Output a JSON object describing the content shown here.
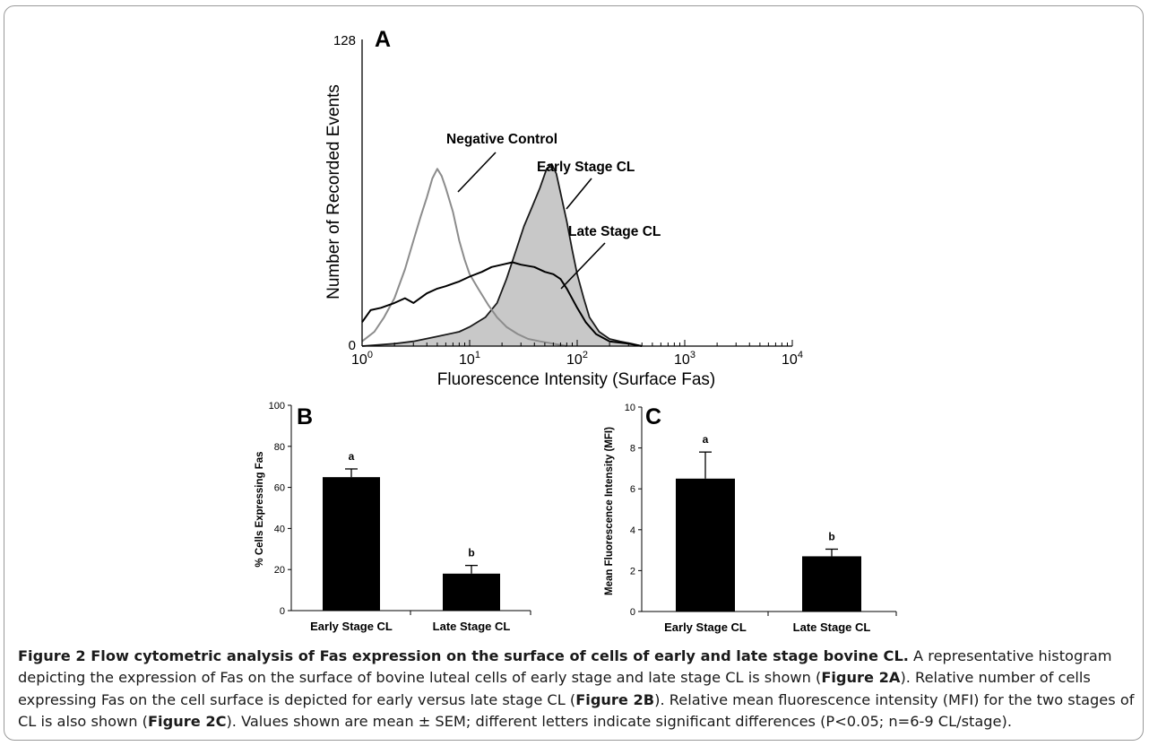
{
  "chart_data": [
    {
      "type": "line",
      "panel_label": "A",
      "xlabel": "Fluorescence Intensity (Surface Fas)",
      "ylabel": "Number of Recorded Events",
      "x_scale": "log",
      "xlim": [
        1,
        10000
      ],
      "ylim": [
        0,
        128
      ],
      "x_ticks": [
        {
          "value": 1,
          "base": "10",
          "exp": "0"
        },
        {
          "value": 10,
          "base": "10",
          "exp": "1"
        },
        {
          "value": 100,
          "base": "10",
          "exp": "2"
        },
        {
          "value": 1000,
          "base": "10",
          "exp": "3"
        },
        {
          "value": 10000,
          "base": "10",
          "exp": "4"
        }
      ],
      "y_ticks": [
        "0",
        "128"
      ],
      "annotations": [
        "Negative Control",
        "Early Stage CL",
        "Late Stage CL"
      ],
      "series": [
        {
          "name": "Negative Control",
          "color": "#8c8c8c",
          "filled": false,
          "x": [
            1,
            1.3,
            1.6,
            2,
            2.5,
            3,
            3.5,
            4,
            4.5,
            5,
            5.5,
            6,
            7,
            8,
            9,
            10,
            12,
            15,
            18,
            22,
            28,
            35,
            45,
            60,
            80
          ],
          "y": [
            2,
            6,
            12,
            20,
            32,
            44,
            54,
            62,
            70,
            74,
            71,
            66,
            56,
            44,
            36,
            30,
            24,
            17,
            12,
            8,
            5,
            3,
            2,
            1,
            0
          ]
        },
        {
          "name": "Early Stage CL",
          "color": "#1a1a1a",
          "fill": "#c8c8c8",
          "filled": true,
          "x": [
            1,
            2,
            3,
            5,
            8,
            10,
            14,
            18,
            22,
            27,
            32,
            38,
            45,
            52,
            58,
            64,
            70,
            80,
            90,
            100,
            115,
            130,
            160,
            200,
            250,
            320,
            400
          ],
          "y": [
            0,
            1,
            2,
            4,
            6,
            8,
            12,
            18,
            28,
            40,
            50,
            58,
            66,
            74,
            76,
            72,
            64,
            52,
            40,
            30,
            20,
            12,
            6,
            3,
            2,
            1,
            0
          ]
        },
        {
          "name": "Late Stage CL",
          "color": "#000000",
          "filled": false,
          "x": [
            1,
            1.2,
            1.5,
            2,
            2.5,
            3,
            4,
            5,
            6,
            8,
            10,
            13,
            16,
            20,
            25,
            30,
            40,
            50,
            60,
            70,
            80,
            100,
            120,
            150,
            200,
            300,
            400
          ],
          "y": [
            10,
            15,
            16,
            18,
            20,
            18,
            22,
            24,
            25,
            27,
            29,
            31,
            33,
            34,
            35,
            34,
            33,
            31,
            30,
            28,
            24,
            16,
            10,
            5,
            2,
            1,
            0
          ]
        }
      ]
    },
    {
      "type": "bar",
      "panel_label": "B",
      "categories": [
        "Early Stage CL",
        "Late Stage CL"
      ],
      "values": [
        65,
        18
      ],
      "errors": [
        4,
        4
      ],
      "letters": [
        "a",
        "b"
      ],
      "ylabel": "% Cells Expressing Fas",
      "ylim": [
        0,
        100
      ],
      "y_ticks": [
        "0",
        "20",
        "40",
        "60",
        "80",
        "100"
      ],
      "bar_color": "#000000"
    },
    {
      "type": "bar",
      "panel_label": "C",
      "categories": [
        "Early Stage CL",
        "Late Stage CL"
      ],
      "values": [
        6.5,
        2.7
      ],
      "errors": [
        1.3,
        0.35
      ],
      "letters": [
        "a",
        "b"
      ],
      "ylabel": "Mean Fluorescence Intensity (MFI)",
      "ylim": [
        0,
        10
      ],
      "y_ticks": [
        "0",
        "2",
        "4",
        "6",
        "8",
        "10"
      ],
      "bar_color": "#000000"
    }
  ],
  "caption": {
    "title": "Figure 2 Flow cytometric analysis of Fas expression on the surface of cells of early and late stage bovine CL.",
    "t1": " A representative histogram depicting the expression of Fas on the surface of bovine luteal cells of early stage and late stage CL is shown (",
    "ref_a": "Figure 2A",
    "t2": "). Relative number of cells expressing Fas on the cell surface is depicted for early versus late stage CL (",
    "ref_b": "Figure 2B",
    "t3": "). Relative mean fluorescence intensity (MFI) for the two stages of CL is also shown (",
    "ref_c": "Figure 2C",
    "t4": "). Values shown are mean ± SEM; different letters indicate significant differences (P<0.05; n=6-9 CL/stage)."
  }
}
